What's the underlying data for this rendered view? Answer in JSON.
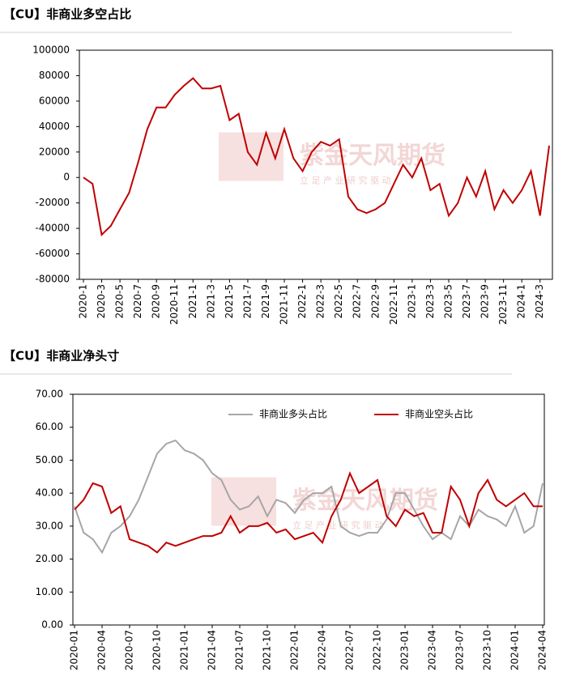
{
  "chart_data": [
    {
      "type": "line",
      "title": "【CU】非商业多空占比",
      "watermark": "紫金天风期货",
      "watermark_sub": "立 足 产 业 研 究 驱 动",
      "categories": [
        "2020-1",
        null,
        "2020-3",
        null,
        "2020-5",
        null,
        "2020-7",
        null,
        "2020-9",
        null,
        "2020-11",
        null,
        "2021-1",
        null,
        "2021-3",
        null,
        "2021-5",
        null,
        "2021-7",
        null,
        "2021-9",
        null,
        "2021-11",
        null,
        "2022-1",
        null,
        "2022-3",
        null,
        "2022-5",
        null,
        "2022-7",
        null,
        "2022-9",
        null,
        "2022-11",
        null,
        "2023-1",
        null,
        "2023-3",
        null,
        "2023-5",
        null,
        "2023-7",
        null,
        "2023-9",
        null,
        "2023-11",
        null,
        "2024-1",
        null,
        "2024-3",
        null
      ],
      "values": [
        0,
        -5000,
        -45000,
        -38000,
        -25000,
        -12000,
        12000,
        38000,
        55000,
        55000,
        65000,
        72000,
        78000,
        70000,
        70000,
        72000,
        45000,
        50000,
        20000,
        10000,
        35000,
        15000,
        38000,
        15000,
        5000,
        20000,
        28000,
        25000,
        30000,
        -15000,
        -25000,
        -28000,
        -25000,
        -20000,
        -5000,
        10000,
        0,
        15000,
        -10000,
        -5000,
        -30000,
        -20000,
        0,
        -15000,
        5000,
        -25000,
        -10000,
        -20000,
        -10000,
        5000,
        -30000,
        25000
      ],
      "color": "#c00000",
      "ylim": [
        -80000,
        100000
      ],
      "yticks": [
        -80000,
        -60000,
        -40000,
        -20000,
        0,
        20000,
        40000,
        60000,
        80000,
        100000
      ]
    },
    {
      "type": "line",
      "title": "【CU】非商业净头寸",
      "watermark": "紫金天风期货",
      "watermark_sub": "立 足 产 业 研 究 驱 动",
      "categories": [
        "2020-01",
        null,
        null,
        "2020-04",
        null,
        null,
        "2020-07",
        null,
        null,
        "2020-10",
        null,
        null,
        "2021-01",
        null,
        null,
        "2021-04",
        null,
        null,
        "2021-07",
        null,
        null,
        "2021-10",
        null,
        null,
        "2022-01",
        null,
        null,
        "2022-04",
        null,
        null,
        "2022-07",
        null,
        null,
        "2022-10",
        null,
        null,
        "2023-01",
        null,
        null,
        "2023-04",
        null,
        null,
        "2023-07",
        null,
        null,
        "2023-10",
        null,
        null,
        "2024-01",
        null,
        null,
        "2024-04"
      ],
      "series": [
        {
          "name": "非商业多头占比",
          "color": "#a6a6a6",
          "values": [
            36,
            28,
            26,
            22,
            28,
            30,
            33,
            38,
            45,
            52,
            55,
            56,
            53,
            52,
            50,
            46,
            44,
            38,
            35,
            36,
            39,
            33,
            38,
            37,
            34,
            38,
            40,
            40,
            42,
            30,
            28,
            27,
            28,
            28,
            32,
            40,
            40,
            35,
            30,
            26,
            28,
            26,
            33,
            30,
            35,
            33,
            32,
            30,
            36,
            28,
            30,
            43
          ]
        },
        {
          "name": "非商业空头占比",
          "color": "#c00000",
          "values": [
            35,
            38,
            43,
            42,
            34,
            36,
            26,
            25,
            24,
            22,
            25,
            24,
            25,
            26,
            27,
            27,
            28,
            33,
            28,
            30,
            30,
            31,
            28,
            29,
            26,
            27,
            28,
            25,
            33,
            38,
            46,
            40,
            42,
            44,
            33,
            30,
            35,
            33,
            34,
            28,
            28,
            42,
            38,
            30,
            40,
            44,
            38,
            36,
            38,
            40,
            36,
            36
          ]
        }
      ],
      "ylim": [
        0,
        70
      ],
      "yticks": [
        {
          "value": 0,
          "label": "0.00"
        },
        {
          "value": 10,
          "label": "10.00"
        },
        {
          "value": 20,
          "label": "20.00"
        },
        {
          "value": 30,
          "label": "30.00"
        },
        {
          "value": 40,
          "label": "40.00"
        },
        {
          "value": 50,
          "label": "50.00"
        },
        {
          "value": 60,
          "label": "60.00"
        },
        {
          "value": 70,
          "label": "70.00"
        }
      ],
      "legend": "top"
    }
  ]
}
